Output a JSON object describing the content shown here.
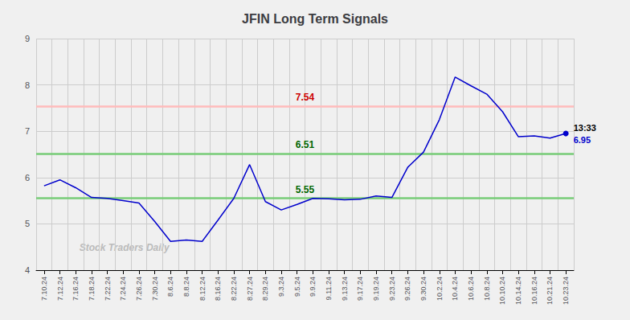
{
  "chart_data": {
    "type": "line",
    "title": "JFIN Long Term Signals",
    "categories": [
      "7.10.24",
      "7.12.24",
      "7.16.24",
      "7.18.24",
      "7.22.24",
      "7.24.24",
      "7.26.24",
      "7.30.24",
      "8.6.24",
      "8.8.24",
      "8.12.24",
      "8.16.24",
      "8.22.24",
      "8.27.24",
      "8.29.24",
      "9.3.24",
      "9.5.24",
      "9.9.24",
      "9.11.24",
      "9.13.24",
      "9.17.24",
      "9.19.24",
      "9.23.24",
      "9.26.24",
      "9.30.24",
      "10.2.24",
      "10.4.24",
      "10.6.24",
      "10.8.24",
      "10.10.24",
      "10.14.24",
      "10.16.24",
      "10.21.24",
      "10.23.24"
    ],
    "values": [
      5.82,
      5.95,
      5.78,
      5.57,
      5.55,
      5.5,
      5.45,
      5.05,
      4.62,
      4.65,
      4.62,
      5.08,
      5.55,
      6.28,
      5.48,
      5.3,
      5.42,
      5.55,
      5.54,
      5.52,
      5.53,
      5.6,
      5.57,
      6.22,
      6.55,
      7.25,
      8.17,
      7.98,
      7.8,
      7.42,
      6.88,
      6.9,
      6.85,
      6.95
    ],
    "color": "#0000cc",
    "hlines": [
      {
        "value": 7.54,
        "color": "#ffbbbb",
        "label_color": "#cc0000"
      },
      {
        "value": 6.51,
        "color": "#77cc77",
        "label_color": "#006600"
      },
      {
        "value": 5.55,
        "color": "#77cc77",
        "label_color": "#006600"
      }
    ],
    "point_annotations": [
      {
        "text": "13:33",
        "color": "#000000"
      },
      {
        "text": "6.95",
        "color": "#0000cc"
      }
    ],
    "watermark": {
      "text": "Stock Traders Daily",
      "color": "#bbbbbb"
    },
    "ylim": [
      4,
      9
    ],
    "yticks": [
      4,
      5,
      6,
      7,
      8,
      9
    ],
    "grid": true
  }
}
